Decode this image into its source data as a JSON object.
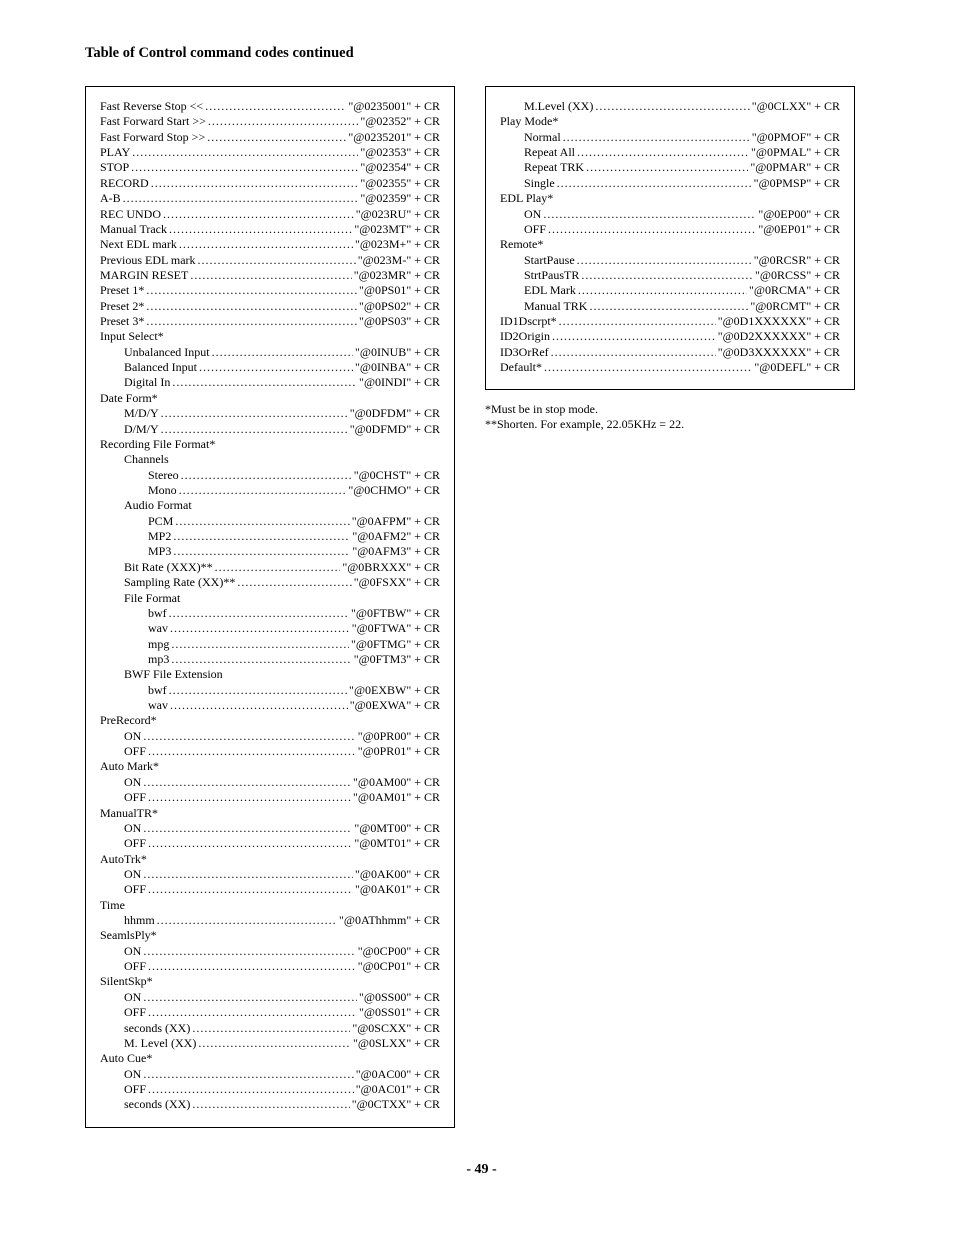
{
  "title": "Table of Control command codes continued",
  "pagenum": "- 49 -",
  "notes": [
    "*Must be in stop mode.",
    "**Shorten. For example, 22.05KHz = 22."
  ],
  "left": [
    {
      "label": "Fast Reverse Stop <<",
      "value": "\"@0235001\" + CR",
      "indent": 0,
      "type": "row"
    },
    {
      "label": "Fast Forward Start >>",
      "value": "\"@02352\" + CR",
      "indent": 0,
      "type": "row"
    },
    {
      "label": "Fast Forward Stop >>",
      "value": "\"@0235201\" + CR",
      "indent": 0,
      "type": "row"
    },
    {
      "label": "PLAY",
      "value": "\"@02353\" + CR",
      "indent": 0,
      "type": "row"
    },
    {
      "label": "STOP",
      "value": "\"@02354\" + CR",
      "indent": 0,
      "type": "row"
    },
    {
      "label": "RECORD",
      "value": "\"@02355\" + CR",
      "indent": 0,
      "type": "row"
    },
    {
      "label": "A-B",
      "value": "\"@02359\" + CR",
      "indent": 0,
      "type": "row"
    },
    {
      "label": "REC UNDO",
      "value": "\"@023RU\" + CR",
      "indent": 0,
      "type": "row"
    },
    {
      "label": "Manual Track",
      "value": "\"@023MT\" + CR",
      "indent": 0,
      "type": "row"
    },
    {
      "label": "Next EDL mark",
      "value": "\"@023M+\" + CR",
      "indent": 0,
      "type": "row"
    },
    {
      "label": "Previous EDL mark",
      "value": "\"@023M-\" + CR",
      "indent": 0,
      "type": "row"
    },
    {
      "label": "MARGIN RESET",
      "value": "\"@023MR\" + CR",
      "indent": 0,
      "type": "row"
    },
    {
      "label": "Preset 1*",
      "value": "\"@0PS01\" + CR",
      "indent": 0,
      "type": "row"
    },
    {
      "label": "Preset 2*",
      "value": "\"@0PS02\" + CR",
      "indent": 0,
      "type": "row"
    },
    {
      "label": "Preset 3*",
      "value": "\"@0PS03\" + CR",
      "indent": 0,
      "type": "row"
    },
    {
      "label": "Input Select*",
      "indent": 0,
      "type": "header"
    },
    {
      "label": "Unbalanced Input",
      "value": "\"@0INUB\" + CR",
      "indent": 1,
      "type": "row"
    },
    {
      "label": "Balanced Input",
      "value": "\"@0INBA\" + CR",
      "indent": 1,
      "type": "row"
    },
    {
      "label": "Digital In",
      "value": "\"@0INDI\" + CR",
      "indent": 1,
      "type": "row"
    },
    {
      "label": "Date Form*",
      "indent": 0,
      "type": "header"
    },
    {
      "label": "M/D/Y",
      "value": "\"@0DFDM\" + CR",
      "indent": 1,
      "type": "row"
    },
    {
      "label": "D/M/Y",
      "value": "\"@0DFMD\" + CR",
      "indent": 1,
      "type": "row"
    },
    {
      "label": "Recording File Format*",
      "indent": 0,
      "type": "header"
    },
    {
      "label": "Channels",
      "indent": 1,
      "type": "header"
    },
    {
      "label": "Stereo",
      "value": "\"@0CHST\" + CR",
      "indent": 2,
      "type": "row"
    },
    {
      "label": "Mono",
      "value": "\"@0CHMO\" + CR",
      "indent": 2,
      "type": "row"
    },
    {
      "label": "Audio Format",
      "indent": 1,
      "type": "header"
    },
    {
      "label": "PCM",
      "value": "\"@0AFPM\" + CR",
      "indent": 2,
      "type": "row"
    },
    {
      "label": "MP2",
      "value": "\"@0AFM2\" + CR",
      "indent": 2,
      "type": "row"
    },
    {
      "label": "MP3",
      "value": "\"@0AFM3\" + CR",
      "indent": 2,
      "type": "row"
    },
    {
      "label": "Bit Rate (XXX)**",
      "value": "\"@0BRXXX\" + CR",
      "indent": 1,
      "type": "row"
    },
    {
      "label": "Sampling Rate (XX)**",
      "value": "\"@0FSXX\" + CR",
      "indent": 1,
      "type": "row"
    },
    {
      "label": "File Format",
      "indent": 1,
      "type": "header"
    },
    {
      "label": "bwf",
      "value": "\"@0FTBW\" + CR",
      "indent": 2,
      "type": "row"
    },
    {
      "label": "wav",
      "value": "\"@0FTWA\" + CR",
      "indent": 2,
      "type": "row"
    },
    {
      "label": "mpg",
      "value": "\"@0FTMG\" + CR",
      "indent": 2,
      "type": "row"
    },
    {
      "label": "mp3",
      "value": "\"@0FTM3\" + CR",
      "indent": 2,
      "type": "row"
    },
    {
      "label": "BWF File Extension",
      "indent": 1,
      "type": "header"
    },
    {
      "label": "bwf",
      "value": "\"@0EXBW\" + CR",
      "indent": 2,
      "type": "row"
    },
    {
      "label": "wav",
      "value": "\"@0EXWA\" + CR",
      "indent": 2,
      "type": "row"
    },
    {
      "label": "PreRecord*",
      "indent": 0,
      "type": "header"
    },
    {
      "label": "ON",
      "value": "\"@0PR00\" + CR",
      "indent": 1,
      "type": "row"
    },
    {
      "label": "OFF",
      "value": "\"@0PR01\" + CR",
      "indent": 1,
      "type": "row"
    },
    {
      "label": "Auto Mark*",
      "indent": 0,
      "type": "header"
    },
    {
      "label": "ON",
      "value": "\"@0AM00\" + CR",
      "indent": 1,
      "type": "row"
    },
    {
      "label": "OFF",
      "value": "\"@0AM01\" + CR",
      "indent": 1,
      "type": "row"
    },
    {
      "label": "ManualTR*",
      "indent": 0,
      "type": "header"
    },
    {
      "label": "ON",
      "value": "\"@0MT00\" + CR",
      "indent": 1,
      "type": "row"
    },
    {
      "label": "OFF",
      "value": "\"@0MT01\" + CR",
      "indent": 1,
      "type": "row"
    },
    {
      "label": "AutoTrk*",
      "indent": 0,
      "type": "header"
    },
    {
      "label": "ON",
      "value": "\"@0AK00\" + CR",
      "indent": 1,
      "type": "row"
    },
    {
      "label": "OFF",
      "value": "\"@0AK01\" + CR",
      "indent": 1,
      "type": "row"
    },
    {
      "label": "Time",
      "indent": 0,
      "type": "header"
    },
    {
      "label": "hhmm",
      "value": "\"@0AThhmm\" + CR",
      "indent": 1,
      "type": "row"
    },
    {
      "label": "SeamlsPly*",
      "indent": 0,
      "type": "header"
    },
    {
      "label": "ON",
      "value": "\"@0CP00\" + CR",
      "indent": 1,
      "type": "row"
    },
    {
      "label": "OFF",
      "value": "\"@0CP01\" + CR",
      "indent": 1,
      "type": "row"
    },
    {
      "label": "SilentSkp*",
      "indent": 0,
      "type": "header"
    },
    {
      "label": "ON",
      "value": "\"@0SS00\" + CR",
      "indent": 1,
      "type": "row"
    },
    {
      "label": "OFF",
      "value": "\"@0SS01\" + CR",
      "indent": 1,
      "type": "row"
    },
    {
      "label": "seconds (XX)",
      "value": "\"@0SCXX\" + CR",
      "indent": 1,
      "type": "row"
    },
    {
      "label": "M. Level (XX)",
      "value": "\"@0SLXX\" + CR",
      "indent": 1,
      "type": "row"
    },
    {
      "label": "Auto Cue*",
      "indent": 0,
      "type": "header"
    },
    {
      "label": "ON",
      "value": "\"@0AC00\" + CR",
      "indent": 1,
      "type": "row"
    },
    {
      "label": "OFF",
      "value": "\"@0AC01\" + CR",
      "indent": 1,
      "type": "row"
    },
    {
      "label": "seconds (XX)",
      "value": "\"@0CTXX\" + CR",
      "indent": 1,
      "type": "row"
    }
  ],
  "right": [
    {
      "label": "M.Level (XX)",
      "value": "\"@0CLXX\" + CR",
      "indent": 1,
      "type": "row"
    },
    {
      "label": "Play Mode*",
      "indent": 0,
      "type": "header"
    },
    {
      "label": "Normal",
      "value": "\"@0PMOF\" + CR",
      "indent": 1,
      "type": "row"
    },
    {
      "label": "Repeat All",
      "value": "\"@0PMAL\" + CR",
      "indent": 1,
      "type": "row"
    },
    {
      "label": "Repeat TRK",
      "value": "\"@0PMAR\" + CR",
      "indent": 1,
      "type": "row"
    },
    {
      "label": "Single",
      "value": "\"@0PMSP\" + CR",
      "indent": 1,
      "type": "row"
    },
    {
      "label": "EDL Play*",
      "indent": 0,
      "type": "header"
    },
    {
      "label": "ON",
      "value": "\"@0EP00\" + CR",
      "indent": 1,
      "type": "row"
    },
    {
      "label": "OFF",
      "value": "\"@0EP01\" + CR",
      "indent": 1,
      "type": "row"
    },
    {
      "label": "Remote*",
      "indent": 0,
      "type": "header"
    },
    {
      "label": "StartPause",
      "value": "\"@0RCSR\" + CR",
      "indent": 1,
      "type": "row"
    },
    {
      "label": "StrtPausTR",
      "value": "\"@0RCSS\" + CR",
      "indent": 1,
      "type": "row"
    },
    {
      "label": "EDL Mark",
      "value": "\"@0RCMA\" + CR",
      "indent": 1,
      "type": "row"
    },
    {
      "label": "Manual TRK",
      "value": "\"@0RCMT\" + CR",
      "indent": 1,
      "type": "row"
    },
    {
      "label": "ID1Dscrpt*",
      "value": "\"@0D1XXXXXX\" + CR",
      "indent": 0,
      "type": "row"
    },
    {
      "label": "ID2Origin",
      "value": "\"@0D2XXXXXX\" + CR",
      "indent": 0,
      "type": "row"
    },
    {
      "label": "ID3OrRef",
      "value": "\"@0D3XXXXXX\" + CR",
      "indent": 0,
      "type": "row"
    },
    {
      "label": "Default*",
      "value": "\"@0DEFL\" + CR",
      "indent": 0,
      "type": "row"
    }
  ]
}
